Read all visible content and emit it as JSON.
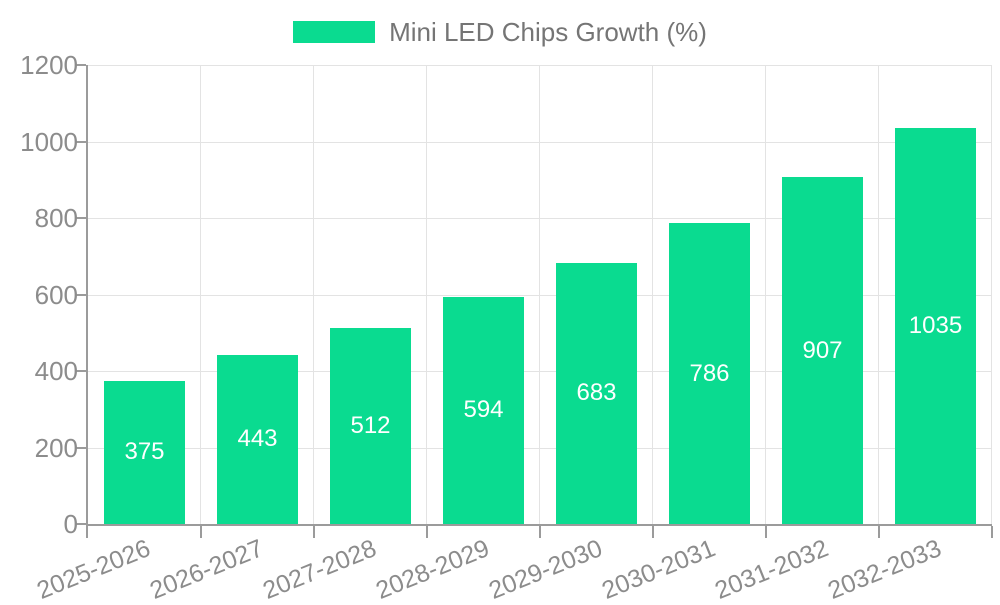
{
  "chart_data": {
    "type": "bar",
    "title": "",
    "legend": {
      "label": "Mini LED Chips Growth (%)"
    },
    "legend_position": "top",
    "categories": [
      "2025-2026",
      "2026-2027",
      "2027-2028",
      "2028-2029",
      "2029-2030",
      "2030-2031",
      "2031-2032",
      "2032-2033"
    ],
    "values": [
      375,
      443,
      512,
      594,
      683,
      786,
      907,
      1035
    ],
    "xlabel": "",
    "ylabel": "",
    "ylim": [
      0,
      1200
    ],
    "yticks": [
      0,
      200,
      400,
      600,
      800,
      1000,
      1200
    ],
    "grid": true,
    "colors": {
      "bar": "#0ADB90",
      "grid": "#E3E3E3",
      "axis": "#9B9B9B",
      "tick_text": "#8C8C8C",
      "value_label": "#FFFFFF",
      "legend_text": "#757575"
    }
  }
}
